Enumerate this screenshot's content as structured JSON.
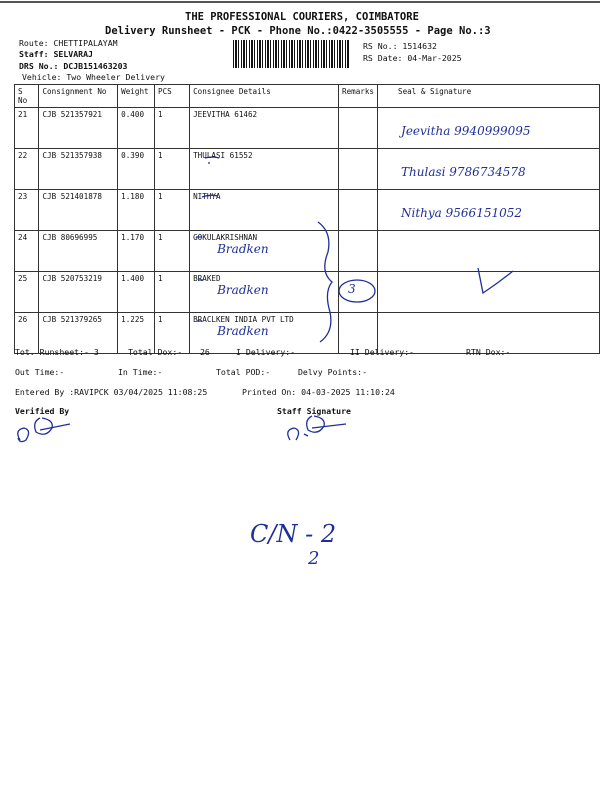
{
  "header": {
    "company": "THE PROFESSIONAL COURIERS, COIMBATORE",
    "subtitle": "Delivery Runsheet - PCK - Phone No.:0422-3505555 - Page No.:3",
    "route": "Route: CHETTIPALAYAM",
    "staff": "Staff: SELVARAJ",
    "drs_no": "DRS No.: DCJB151463203",
    "vehicle": "Vehicle: Two Wheeler Delivery",
    "rs_no": "RS No.: 1514632",
    "rs_date": "RS Date: 04-Mar-2025"
  },
  "table": {
    "columns": [
      "S No",
      "Consignment No",
      "Weight",
      "PCS",
      "Consignee Details",
      "Remarks",
      "Seal & Signature"
    ],
    "rows": [
      {
        "sno": "21",
        "cons": "CJB 521357921",
        "weight": "0.400",
        "pcs": "1",
        "details": "JEEVITHA 61462",
        "hw": "",
        "sig": "Jeevitha 9940999095"
      },
      {
        "sno": "22",
        "cons": "CJB 521357938",
        "weight": "0.390",
        "pcs": "1",
        "details": "THULASI 61552",
        "hw": "",
        "sig": "Thulasi 9786734578"
      },
      {
        "sno": "23",
        "cons": "CJB 521401878",
        "weight": "1.180",
        "pcs": "1",
        "details": "NITHYA",
        "hw": "",
        "sig": "Nithya 9566151052"
      },
      {
        "sno": "24",
        "cons": "CJB 80696995",
        "weight": "1.170",
        "pcs": "1",
        "details": "GOKULAKRISHNAN",
        "hw": "Bradken",
        "sig": ""
      },
      {
        "sno": "25",
        "cons": "CJB 520753219",
        "weight": "1.400",
        "pcs": "1",
        "details": "BRAKED",
        "hw": "Bradken",
        "sig": ""
      },
      {
        "sno": "26",
        "cons": "CJB 521379265",
        "weight": "1.225",
        "pcs": "1",
        "details": "BRACLKEN INDIA PVT LTD",
        "hw": "Bradken",
        "sig": ""
      }
    ],
    "bracket_note": "3"
  },
  "footer": {
    "tot_runsheet": "Tot. Runsheet:- 3",
    "total_dox": "Total Dox:-",
    "total_dox_value": "26",
    "i_delivery": "I Delivery:-",
    "ii_delivery": "II Delivery:-",
    "rtn_dox": "RTN Dox:-",
    "out_time": "Out Time:-",
    "in_time": "In Time:-",
    "total_pod": "Total POD:-",
    "delvy_points": "Delvy Points:-",
    "entered_by": "Entered By :RAVIPCK 03/04/2025 11:08:25",
    "printed_on": "Printed On: 04-03-2025 11:10:24",
    "verified_by": "Verified By",
    "staff_signature": "Staff Signature"
  },
  "handwritten_note": {
    "line1": "C/N - 2",
    "line2": "2"
  },
  "colors": {
    "ink": "#1f2f9a",
    "text": "#111111"
  }
}
